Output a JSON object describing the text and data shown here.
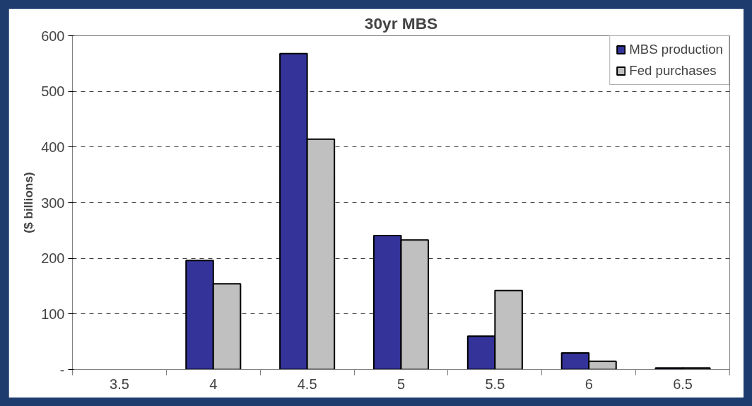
{
  "chart_data": {
    "type": "bar",
    "title": "30yr MBS",
    "ylabel": "($ billions)",
    "categories": [
      "3.5",
      "4",
      "4.5",
      "5",
      "5.5",
      "6",
      "6.5"
    ],
    "series": [
      {
        "name": "MBS production",
        "color": "#333399",
        "values": [
          null,
          196,
          568,
          241,
          60,
          30,
          3
        ]
      },
      {
        "name": "Fed purchases",
        "color": "#c0c0c0",
        "values": [
          null,
          154,
          414,
          233,
          142,
          15,
          3
        ]
      }
    ],
    "ylim": [
      0,
      600
    ],
    "yticks": [
      {
        "value": 0,
        "label": "-"
      },
      100,
      200,
      300,
      400,
      500,
      600
    ],
    "grid": "y",
    "legend": "top right"
  }
}
